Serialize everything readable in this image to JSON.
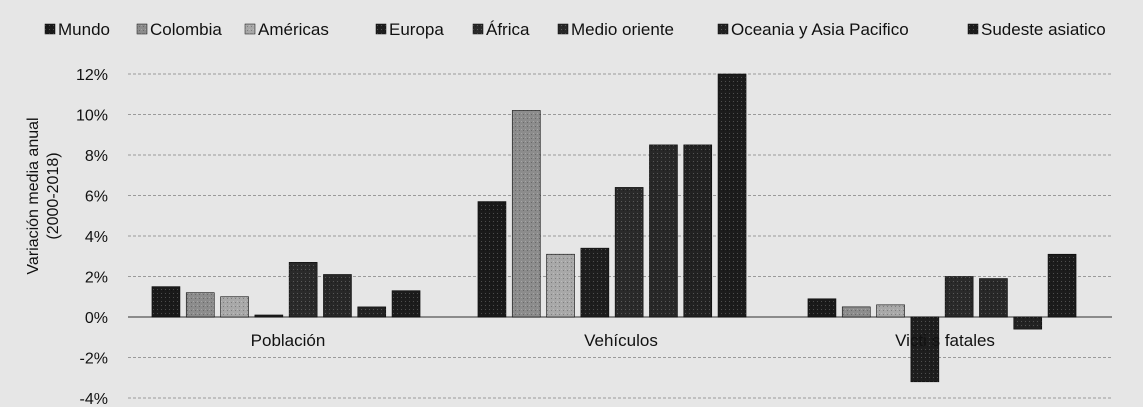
{
  "chart_data": {
    "type": "bar",
    "categories": [
      "Población",
      "Vehículos",
      "Víctimas fatales"
    ],
    "category_labels_display": [
      "Población",
      "Vehículos",
      "Victi  s fatales"
    ],
    "series": [
      {
        "name": "Mundo",
        "values": [
          1.5,
          5.7,
          0.9
        ]
      },
      {
        "name": "Colombia",
        "values": [
          1.2,
          10.2,
          0.5
        ]
      },
      {
        "name": "Américas",
        "values": [
          1.0,
          3.1,
          0.6
        ]
      },
      {
        "name": "Europa",
        "values": [
          0.1,
          3.4,
          -3.2
        ]
      },
      {
        "name": "África",
        "values": [
          2.7,
          6.4,
          2.0
        ]
      },
      {
        "name": "Medio oriente",
        "values": [
          2.1,
          8.5,
          1.9
        ]
      },
      {
        "name": "Oceania y Asia Pacifico",
        "values": [
          0.5,
          8.5,
          -0.6
        ]
      },
      {
        "name": "Sudeste asiatico",
        "values": [
          1.3,
          12.0,
          3.1
        ]
      }
    ],
    "legend_labels_display": [
      "Mundo",
      "Colombia",
      "Américas",
      "Europa",
      "África",
      "Medio oriente",
      "Oceania y Asia Pacifico",
      "Sudeste asiatico"
    ],
    "ylabel": "Variación media anual (2000-2018)",
    "ylabel_lines": [
      "Variación media anual",
      "(2000-2018)"
    ],
    "ylim": [
      -4,
      12
    ],
    "yticks": [
      12,
      10,
      8,
      6,
      4,
      2,
      0,
      -2,
      -4
    ],
    "ytick_labels": [
      "12%",
      "10%",
      "8%",
      "6%",
      "4%",
      "2%",
      "0%",
      "-2%",
      "-4%"
    ],
    "grid": true,
    "legend_position": "top",
    "colors": [
      "#1a1a1a",
      "#8c8c8c",
      "#a8a8a8",
      "#1e1e1e",
      "#2a2a2a",
      "#282828",
      "#222222",
      "#1c1c1c"
    ]
  }
}
